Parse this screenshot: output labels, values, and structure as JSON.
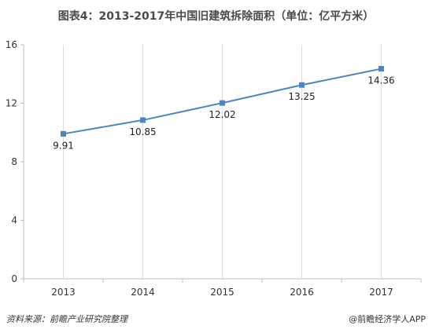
{
  "chart_data": {
    "type": "line",
    "title": "图表4：2013-2017年中国旧建筑拆除面积（单位：亿平方米）",
    "x": [
      "2013",
      "2014",
      "2015",
      "2016",
      "2017"
    ],
    "series": [
      {
        "values": [
          9.91,
          10.85,
          12.02,
          13.25,
          14.36
        ],
        "color": "#4a86c5"
      }
    ],
    "data_labels": [
      "9.91",
      "10.85",
      "12.02",
      "13.25",
      "14.36"
    ],
    "ylim": [
      0,
      16
    ],
    "yticks": [
      0,
      4,
      8,
      12,
      16
    ],
    "grid": "vertical",
    "legend": "none"
  },
  "source": "资料来源：前瞻产业研究院整理",
  "brand": "@前瞻经济学人APP"
}
